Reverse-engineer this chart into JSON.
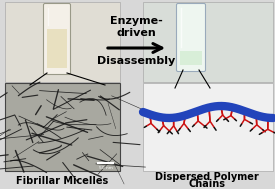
{
  "background_color": "#d8d8d8",
  "arrow_color": "#000000",
  "label_fibrillar": "Fibrillar Micelles",
  "label_dispersed": "Dispersed Polymer\nChains",
  "blue_chain_color": "#2244bb",
  "red_side_chain_color": "#cc1111",
  "black_end_color": "#111111",
  "tem_bg_color": "#b8b8b8",
  "tem_fiber_color": "#222222",
  "left_panel_bg": "#c8c8c8",
  "right_panel_bg": "#d0d8d8",
  "vial_left_glass": "#f0ede0",
  "vial_left_fill": "#e8dfc8",
  "vial_right_glass": "#eef4ee",
  "vial_right_fill": "#ddeedd",
  "fig_width": 2.75,
  "fig_height": 1.89,
  "dpi": 100,
  "enzyme_text": "Enzyme-\ndriven",
  "disassembly_text": "Disassembly"
}
